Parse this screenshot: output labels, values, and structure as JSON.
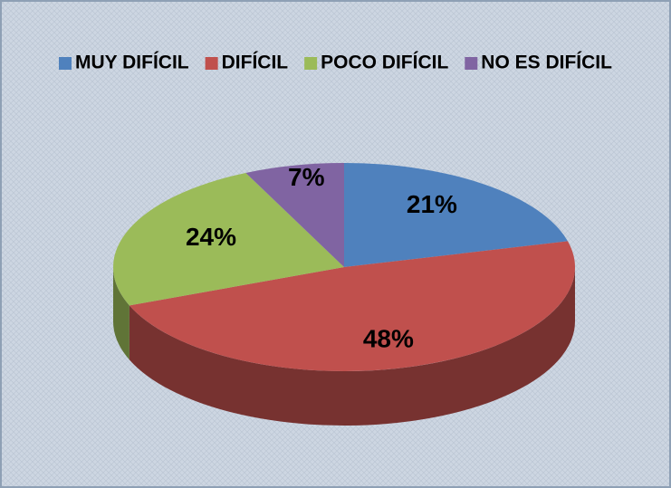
{
  "chart_data": {
    "type": "pie3d",
    "categories": [
      "MUY DIFÍCIL",
      "DIFÍCIL",
      "POCO DIFÍCIL",
      "NO ES DIFÍCIL"
    ],
    "values": [
      21,
      48,
      24,
      7
    ],
    "value_labels": [
      "21%",
      "48%",
      "24%",
      "7%"
    ],
    "colors": [
      "#4f81bd",
      "#c0504d",
      "#9bbb59",
      "#8064a2"
    ],
    "legend": "top"
  }
}
